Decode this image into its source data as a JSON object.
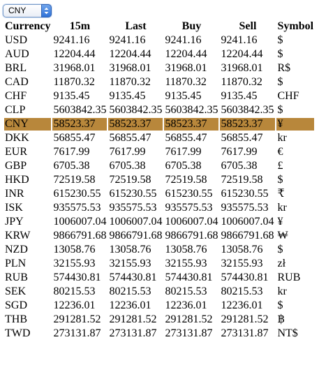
{
  "selector": {
    "selected_value": "CNY"
  },
  "table": {
    "headers": [
      "Currency",
      "15m",
      "Last",
      "Buy",
      "Sell",
      "Symbol"
    ],
    "selected_row": "CNY",
    "selected_color": "#b8873b",
    "rows": [
      [
        "USD",
        "9241.16",
        "9241.16",
        "9241.16",
        "9241.16",
        "$"
      ],
      [
        "AUD",
        "12204.44",
        "12204.44",
        "12204.44",
        "12204.44",
        "$"
      ],
      [
        "BRL",
        "31968.01",
        "31968.01",
        "31968.01",
        "31968.01",
        "R$"
      ],
      [
        "CAD",
        "11870.32",
        "11870.32",
        "11870.32",
        "11870.32",
        "$"
      ],
      [
        "CHF",
        "9135.45",
        "9135.45",
        "9135.45",
        "9135.45",
        "CHF"
      ],
      [
        "CLP",
        "5603842.35",
        "5603842.35",
        "5603842.35",
        "5603842.35",
        "$"
      ],
      [
        "CNY",
        "58523.37",
        "58523.37",
        "58523.37",
        "58523.37",
        "¥"
      ],
      [
        "DKK",
        "56855.47",
        "56855.47",
        "56855.47",
        "56855.47",
        "kr"
      ],
      [
        "EUR",
        "7617.99",
        "7617.99",
        "7617.99",
        "7617.99",
        "€"
      ],
      [
        "GBP",
        "6705.38",
        "6705.38",
        "6705.38",
        "6705.38",
        "£"
      ],
      [
        "HKD",
        "72519.58",
        "72519.58",
        "72519.58",
        "72519.58",
        "$"
      ],
      [
        "INR",
        "615230.55",
        "615230.55",
        "615230.55",
        "615230.55",
        "₹"
      ],
      [
        "ISK",
        "935575.53",
        "935575.53",
        "935575.53",
        "935575.53",
        "kr"
      ],
      [
        "JPY",
        "1006007.04",
        "1006007.04",
        "1006007.04",
        "1006007.04",
        "¥"
      ],
      [
        "KRW",
        "9866791.68",
        "9866791.68",
        "9866791.68",
        "9866791.68",
        "₩"
      ],
      [
        "NZD",
        "13058.76",
        "13058.76",
        "13058.76",
        "13058.76",
        "$"
      ],
      [
        "PLN",
        "32155.93",
        "32155.93",
        "32155.93",
        "32155.93",
        "zł"
      ],
      [
        "RUB",
        "574430.81",
        "574430.81",
        "574430.81",
        "574430.81",
        "RUB"
      ],
      [
        "SEK",
        "80215.53",
        "80215.53",
        "80215.53",
        "80215.53",
        "kr"
      ],
      [
        "SGD",
        "12236.01",
        "12236.01",
        "12236.01",
        "12236.01",
        "$"
      ],
      [
        "THB",
        "291281.52",
        "291281.52",
        "291281.52",
        "291281.52",
        "฿"
      ],
      [
        "TWD",
        "273131.87",
        "273131.87",
        "273131.87",
        "273131.87",
        "NT$"
      ]
    ]
  }
}
